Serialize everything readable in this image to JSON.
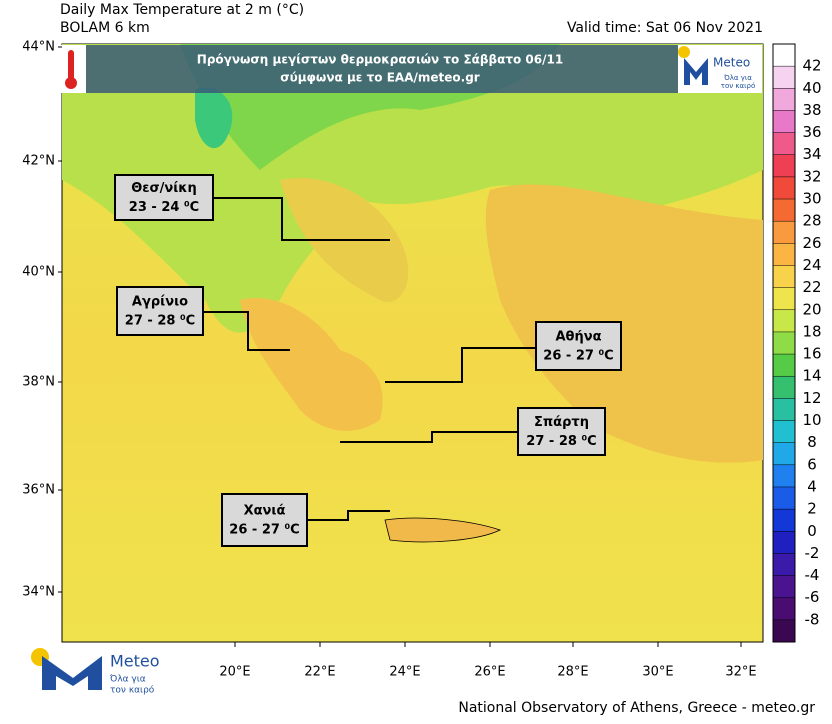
{
  "header": {
    "title": "Daily Max Temperature at 2 m (°C)",
    "subtitle": "BOLAM 6 km",
    "valid_time": "Valid time: Sat 06 Nov 2021"
  },
  "banner": {
    "line1": "Πρόγνωση μεγίστων θερμοκρασιών  το Σάββατο 06/11",
    "line2": "σύμφωνα με το ΕΑΑ/meteo.gr"
  },
  "logo": {
    "name": "Meteo",
    "slogan_line1": "Όλα για",
    "slogan_line2": "τον καιρό"
  },
  "callouts": [
    {
      "city": "Θεσ/νίκη",
      "range": "23 - 24 ⁰C"
    },
    {
      "city": "Αγρίνιο",
      "range": "27 - 28 ⁰C"
    },
    {
      "city": "Αθήνα",
      "range": "26 - 27 ⁰C"
    },
    {
      "city": "Σπάρτη",
      "range": "27 - 28 ⁰C"
    },
    {
      "city": "Χανιά",
      "range": "26 - 27 ⁰C"
    }
  ],
  "axes": {
    "lat_labels": [
      "44°N",
      "42°N",
      "40°N",
      "38°N",
      "36°N",
      "34°N"
    ],
    "lon_labels": [
      "20°E",
      "22°E",
      "24°E",
      "26°E",
      "28°E",
      "30°E",
      "32°E"
    ]
  },
  "colorbar": {
    "ticks": [
      42,
      40,
      38,
      36,
      34,
      32,
      30,
      28,
      26,
      24,
      22,
      20,
      18,
      16,
      14,
      12,
      10,
      8,
      6,
      4,
      2,
      0,
      -2,
      -4,
      -6,
      -8
    ],
    "colors": [
      "#ffffff",
      "#f6d3ee",
      "#f0a8dd",
      "#e878c8",
      "#f05a8a",
      "#ee3f55",
      "#f04a3a",
      "#f56a33",
      "#f89a3d",
      "#fbb545",
      "#f8d24a",
      "#eee54c",
      "#c8e84a",
      "#8fdc46",
      "#56cc46",
      "#35c070",
      "#28c0a0",
      "#20c0d0",
      "#20a8e8",
      "#2080f0",
      "#1a5ce8",
      "#1438d8",
      "#2020c0",
      "#3a1aa8",
      "#4a1490",
      "#4a0c70",
      "#3a0850"
    ]
  },
  "footer": "National Observatory of Athens, Greece - meteo.gr"
}
